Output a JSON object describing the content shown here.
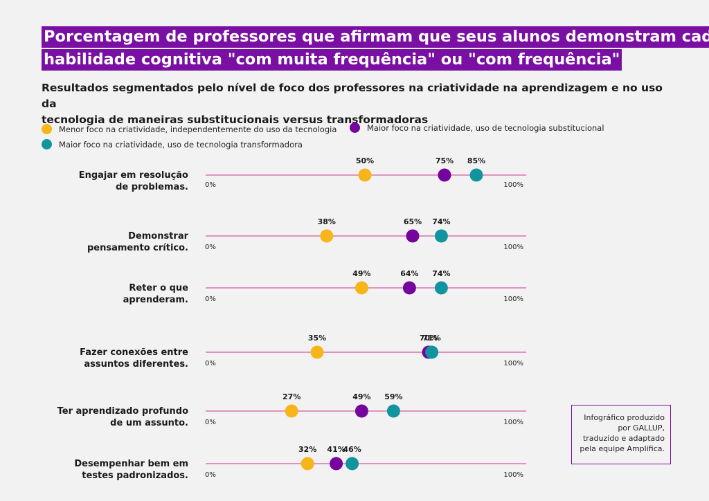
{
  "header": {
    "title_lines": [
      "Porcentagem de professores que afirmam que seus alunos demonstram cada",
      "habilidade cognitiva \"com muita frequência\" ou \"com frequência\""
    ],
    "subtitle_lines": [
      "Resultados segmentados pelo nível de foco dos professores na criatividade na aprendizagem e no uso da",
      "tecnologia de maneiras substitucionais versus transformadoras"
    ]
  },
  "colors": {
    "background": "#f2f2f2",
    "accent": "#7a0fa3",
    "axis_line": "#d1328a",
    "low_creativity": "#f7b519",
    "substitutional": "#74049c",
    "transformative": "#10959f"
  },
  "credit": {
    "lines": [
      "Infográfico produzido",
      "por GALLUP,",
      "traduzido e adaptado",
      "pela equipe Amplifica."
    ]
  },
  "chart_data": {
    "type": "scatter",
    "xlim": [
      0,
      100
    ],
    "tick_labels": [
      "0%",
      "100%"
    ],
    "legend_placement": "top",
    "series": [
      {
        "name": "Menor foco na criatividade, independentemente do uso da tecnologia",
        "color": "#f7b519",
        "values": [
          50,
          38,
          49,
          35,
          27,
          32
        ]
      },
      {
        "name": "Maior foco na criatividade, uso de tecnologia substitucional",
        "color": "#74049c",
        "values": [
          75,
          65,
          64,
          70,
          49,
          41
        ]
      },
      {
        "name": "Maior foco na criatividade, uso de tecnologia transformadora",
        "color": "#10959f",
        "values": [
          85,
          74,
          74,
          71,
          59,
          46
        ]
      }
    ],
    "categories": [
      [
        "Engajar em resolução",
        "de problemas."
      ],
      [
        "Demonstrar",
        "pensamento crítico."
      ],
      [
        "Reter o que",
        "aprenderam."
      ],
      [
        "Fazer conexões entre",
        "assuntos diferentes."
      ],
      [
        "Ter aprendizado profundo",
        "de um assunto."
      ],
      [
        "Desempenhar bem em",
        "testes padronizados."
      ]
    ]
  }
}
